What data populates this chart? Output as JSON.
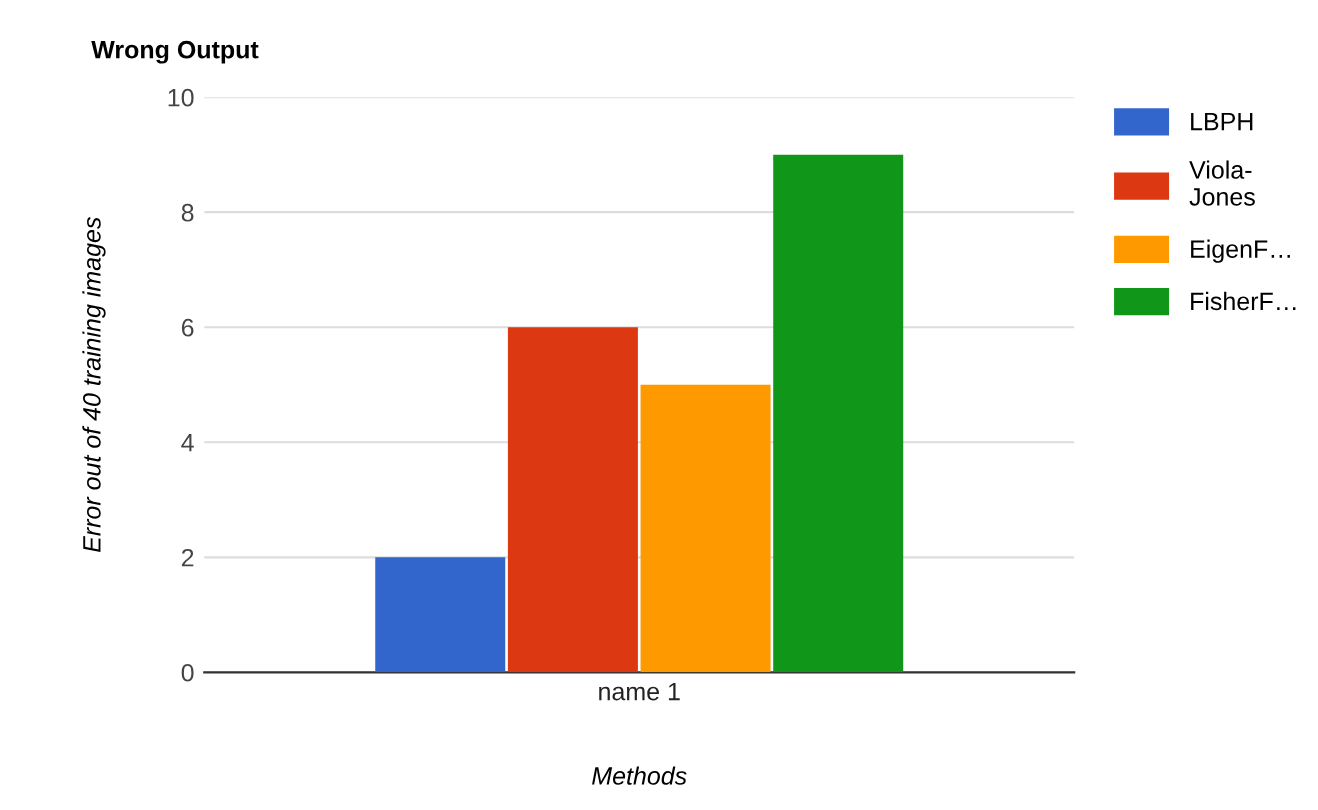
{
  "chart_data": {
    "type": "bar",
    "title": "Wrong Output",
    "xlabel": "Methods",
    "ylabel": "Error out of 40 training images",
    "categories": [
      "name 1"
    ],
    "series": [
      {
        "name": "LBPH",
        "color": "#3366cc",
        "values": [
          2
        ]
      },
      {
        "name": "Viola-Jones",
        "color": "#dc3912",
        "values": [
          6
        ]
      },
      {
        "name": "EigenF…",
        "color": "#ff9900",
        "values": [
          5
        ]
      },
      {
        "name": "FisherF…",
        "color": "#109618",
        "values": [
          9
        ]
      }
    ],
    "ylim": [
      0,
      10
    ],
    "yticks": [
      0,
      2,
      4,
      6,
      8,
      10
    ],
    "grid": "y",
    "legend": "right"
  }
}
